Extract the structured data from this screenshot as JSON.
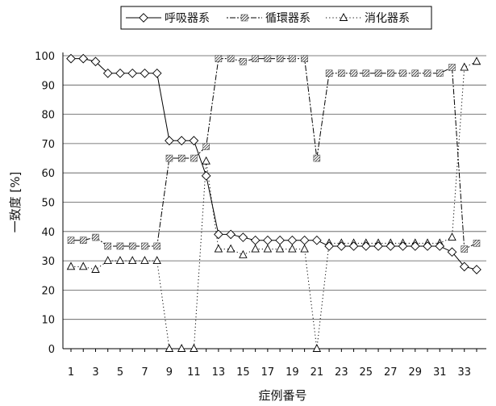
{
  "chart_data": {
    "type": "line",
    "title": "",
    "xlabel": "症例番号",
    "ylabel": "一致度 [%]",
    "xlim": [
      1,
      34
    ],
    "ylim": [
      0,
      100
    ],
    "y_ticks": [
      0,
      10,
      20,
      30,
      40,
      50,
      60,
      70,
      80,
      90,
      100
    ],
    "x_tick_labels": [
      1,
      3,
      5,
      7,
      9,
      11,
      13,
      15,
      17,
      19,
      21,
      23,
      25,
      27,
      29,
      31,
      33
    ],
    "grid": "horizontal",
    "legend_position": "top",
    "x": [
      1,
      2,
      3,
      4,
      5,
      6,
      7,
      8,
      9,
      10,
      11,
      12,
      13,
      14,
      15,
      16,
      17,
      18,
      19,
      20,
      21,
      22,
      23,
      24,
      25,
      26,
      27,
      28,
      29,
      30,
      31,
      32,
      33,
      34
    ],
    "series": [
      {
        "name": "呼吸器系",
        "line_style": "solid",
        "marker": "diamond",
        "color": "#000000",
        "values": [
          99,
          99,
          98,
          94,
          94,
          94,
          94,
          94,
          71,
          71,
          71,
          59,
          39,
          39,
          38,
          37,
          37,
          37,
          37,
          37,
          37,
          35,
          35,
          35,
          35,
          35,
          35,
          35,
          35,
          35,
          35,
          33,
          28,
          27
        ]
      },
      {
        "name": "循環器系",
        "line_style": "dash-dot",
        "marker": "hatched-square",
        "color": "#000000",
        "values": [
          37,
          37,
          38,
          35,
          35,
          35,
          35,
          35,
          65,
          65,
          65,
          69,
          99,
          99,
          98,
          99,
          99,
          99,
          99,
          99,
          65,
          94,
          94,
          94,
          94,
          94,
          94,
          94,
          94,
          94,
          94,
          96,
          34,
          36
        ]
      },
      {
        "name": "消化器系",
        "line_style": "dotted",
        "marker": "triangle",
        "color": "#000000",
        "values": [
          28,
          28,
          27,
          30,
          30,
          30,
          30,
          30,
          0,
          0,
          0,
          64,
          34,
          34,
          32,
          34,
          34,
          34,
          34,
          34,
          0,
          36,
          36,
          36,
          36,
          36,
          36,
          36,
          36,
          36,
          36,
          38,
          96,
          98
        ]
      }
    ]
  }
}
